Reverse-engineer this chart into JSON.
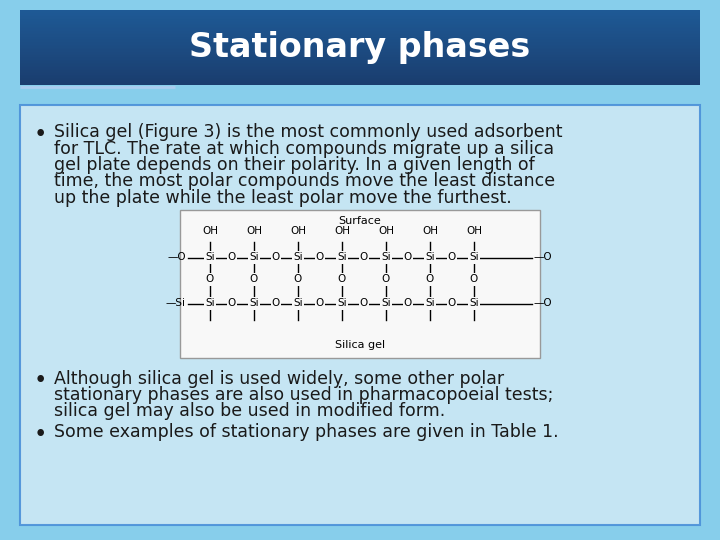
{
  "title": "Stationary phases",
  "slide_bg_color": "#87ceeb",
  "title_bg_dark": "#1a3d6e",
  "title_bg_light": "#2060a0",
  "content_bg_color": "#cce8f4",
  "title_text_color": "#ffffff",
  "bullet1_lines": [
    "Silica gel (Figure 3) is the most commonly used adsorbent",
    "for TLC. The rate at which compounds migrate up a silica",
    "gel plate depends on their polarity. In a given length of",
    "time, the most polar compounds move the least distance",
    "up the plate while the least polar move the furthest."
  ],
  "bullet2_lines": [
    "Although silica gel is used widely, some other polar",
    "stationary phases are also used in pharmacopoeial tests;",
    "silica gel may also be used in modified form."
  ],
  "bullet3_lines": [
    "Some examples of stationary phases are given in Table 1."
  ],
  "text_color": "#1a1a1a",
  "font_size": 12.5,
  "title_font_size": 24,
  "border_color": "#4a90d9",
  "divider_color": "#aaccee"
}
